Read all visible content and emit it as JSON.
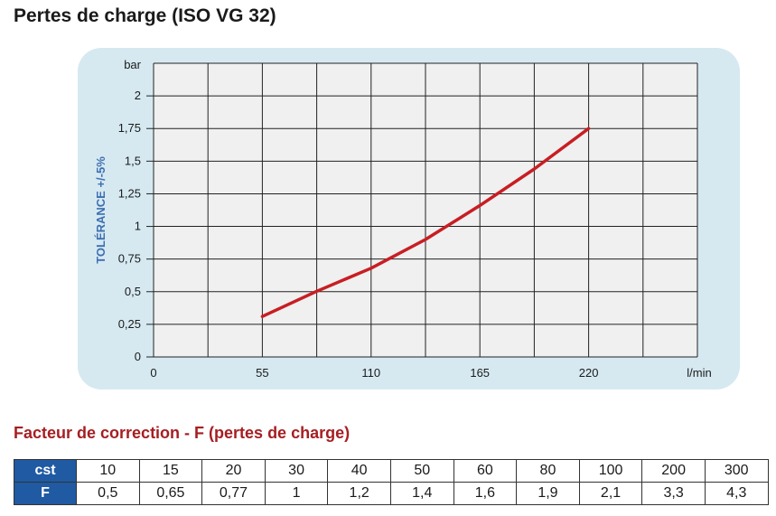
{
  "page_title": "Pertes de charge (ISO VG 32)",
  "chart_data": {
    "type": "line",
    "title": "Pertes de charge (ISO VG 32)",
    "ylabel": "TOLÉRANCE +/-5%",
    "y_unit": "bar",
    "x_unit": "l/min",
    "x_ticks": [
      "0",
      "55",
      "110",
      "165",
      "220"
    ],
    "y_ticks": [
      "0",
      "0,25",
      "0,5",
      "0,75",
      "1",
      "1,25",
      "1,5",
      "1,75",
      "2"
    ],
    "xlim": [
      0,
      275
    ],
    "ylim": [
      0,
      2.25
    ],
    "grid": true,
    "series": [
      {
        "color": "#c81e23",
        "points": [
          {
            "x": 55,
            "y": 0.31
          },
          {
            "x": 82,
            "y": 0.5
          },
          {
            "x": 110,
            "y": 0.68
          },
          {
            "x": 137.5,
            "y": 0.9
          },
          {
            "x": 165,
            "y": 1.16
          },
          {
            "x": 192.5,
            "y": 1.44
          },
          {
            "x": 220,
            "y": 1.75
          }
        ]
      }
    ]
  },
  "correction": {
    "title": "Facteur de correction - F (pertes de charge)",
    "rows": [
      {
        "label": "cst",
        "values": [
          "10",
          "15",
          "20",
          "30",
          "40",
          "50",
          "60",
          "80",
          "100",
          "200",
          "300"
        ]
      },
      {
        "label": "F",
        "values": [
          "0,5",
          "0,65",
          "0,77",
          "1",
          "1,2",
          "1,4",
          "1,6",
          "1,9",
          "2,1",
          "3,3",
          "4,3"
        ]
      }
    ]
  }
}
